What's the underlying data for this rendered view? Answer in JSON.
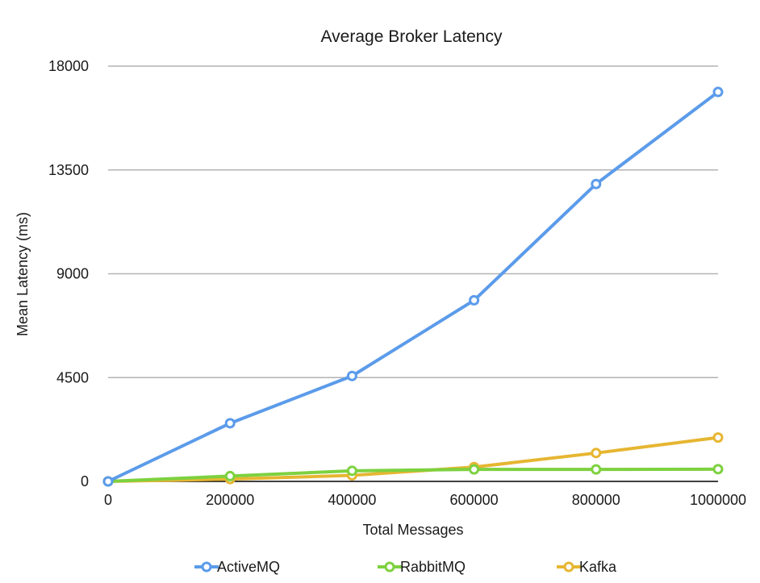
{
  "chart_data": {
    "type": "line",
    "title": "Average Broker Latency",
    "xlabel": "Total Messages",
    "ylabel": "Mean Latency (ms)",
    "x": [
      0,
      200000,
      400000,
      600000,
      800000,
      1000000
    ],
    "xticks": [
      "0",
      "200000",
      "400000",
      "600000",
      "800000",
      "1000000"
    ],
    "yticks": [
      "0",
      "4500",
      "9000",
      "13500",
      "18000"
    ],
    "ytick_values": [
      0,
      4500,
      9000,
      13500,
      18000
    ],
    "xlim": [
      0,
      1000000
    ],
    "ylim": [
      0,
      18000
    ],
    "grid": true,
    "legend": "bottom",
    "series": [
      {
        "name": "ActiveMQ",
        "color": "#5b9bea",
        "values": [
          0,
          2520,
          4570,
          7850,
          12890,
          16880
        ]
      },
      {
        "name": "RabbitMQ",
        "color": "#7dd13f",
        "values": [
          0,
          230,
          460,
          520,
          520,
          530
        ]
      },
      {
        "name": "Kafka",
        "color": "#e6b632",
        "values": [
          0,
          100,
          260,
          620,
          1230,
          1900
        ]
      }
    ]
  }
}
